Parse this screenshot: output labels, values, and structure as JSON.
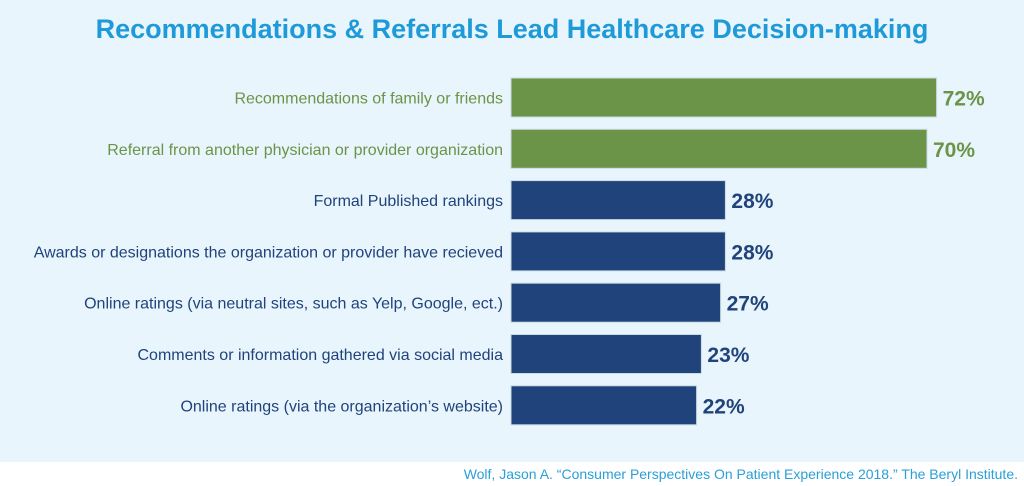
{
  "chart_data": {
    "type": "bar",
    "orientation": "horizontal",
    "title": "Recommendations & Referrals Lead Healthcare Decision-making",
    "categories": [
      "Recommendations of family or friends",
      "Referral from another physician or provider organization",
      "Formal Published rankings",
      "Awards or designations the organization or provider have recieved",
      "Online ratings (via neutral sites, such as Yelp, Google, ect.)",
      "Comments or information gathered via social media",
      "Online ratings (via the organization’s website)"
    ],
    "values": [
      72,
      70,
      28,
      28,
      27,
      23,
      22
    ],
    "value_labels": [
      "72%",
      "70%",
      "28%",
      "28%",
      "27%",
      "23%",
      "22%"
    ],
    "bar_colors": [
      "#6c9448",
      "#6c9448",
      "#21437c",
      "#21437c",
      "#21437c",
      "#21437c",
      "#21437c"
    ],
    "xlabel": "",
    "ylabel": "",
    "grid": false,
    "legend": "none"
  },
  "source": "Wolf, Jason A. “Consumer Perspectives On Patient Experience 2018.” The Beryl Institute."
}
